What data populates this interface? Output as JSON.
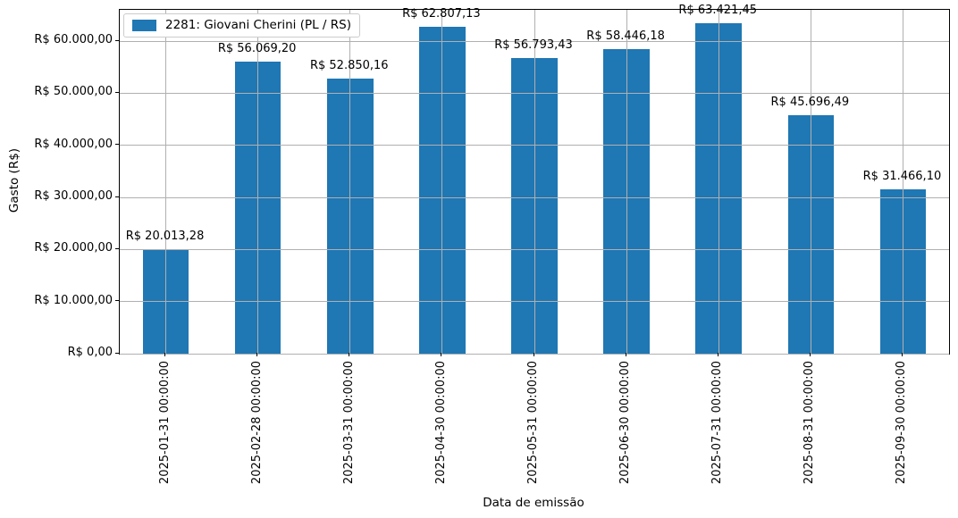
{
  "chart_data": {
    "type": "bar",
    "legend": {
      "label": "2281: Giovani Cherini (PL / RS)",
      "position": "upper-left"
    },
    "xlabel": "Data de emissão",
    "ylabel": "Gasto (R$)",
    "categories": [
      "2025-01-31 00:00:00",
      "2025-02-28 00:00:00",
      "2025-03-31 00:00:00",
      "2025-04-30 00:00:00",
      "2025-05-31 00:00:00",
      "2025-06-30 00:00:00",
      "2025-07-31 00:00:00",
      "2025-08-31 00:00:00",
      "2025-09-30 00:00:00"
    ],
    "values": [
      20013.28,
      56069.2,
      52850.16,
      62807.13,
      56793.43,
      58446.18,
      63421.45,
      45696.49,
      31466.1
    ],
    "bar_labels": [
      "R$ 20.013,28",
      "R$ 56.069,20",
      "R$ 52.850,16",
      "R$ 62.807,13",
      "R$ 56.793,43",
      "R$ 58.446,18",
      "R$ 63.421,45",
      "R$ 45.696,49",
      "R$ 31.466,10"
    ],
    "y_tick_values": [
      0,
      10000,
      20000,
      30000,
      40000,
      50000,
      60000
    ],
    "y_tick_labels": [
      "R$ 0,00",
      "R$ 10.000,00",
      "R$ 20.000,00",
      "R$ 30.000,00",
      "R$ 40.000,00",
      "R$ 50.000,00",
      "R$ 60.000,00"
    ],
    "ylim": [
      0,
      66000
    ],
    "grid": true,
    "grid_on_top": true,
    "bar_color": "#1f77b4",
    "grid_color": "#b0b0b0",
    "bar_width_fraction": 0.5
  }
}
